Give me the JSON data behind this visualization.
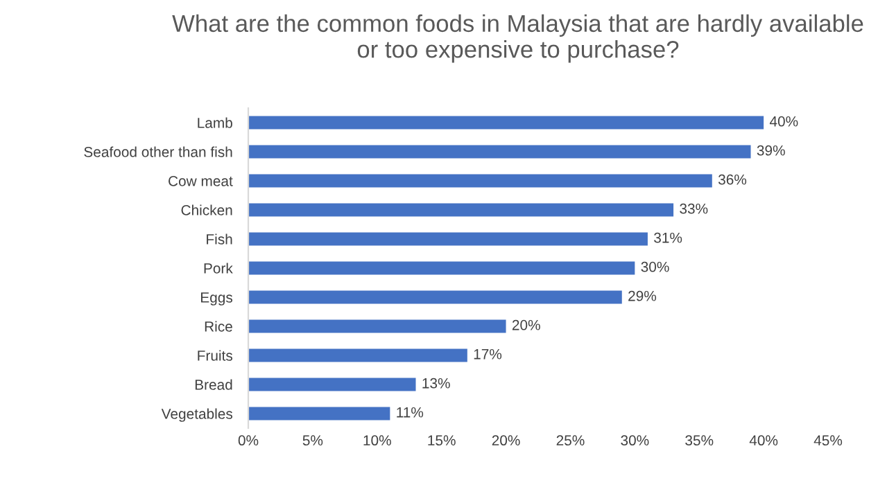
{
  "chart_data": {
    "type": "bar",
    "orientation": "horizontal",
    "title": "What are the common foods in Malaysia that are hardly available or too expensive to purchase?",
    "categories": [
      "Lamb",
      "Seafood other than fish",
      "Cow meat",
      "Chicken",
      "Fish",
      "Pork",
      "Eggs",
      "Rice",
      "Fruits",
      "Bread",
      "Vegetables"
    ],
    "values": [
      40,
      39,
      36,
      33,
      31,
      30,
      29,
      20,
      17,
      13,
      11
    ],
    "value_labels": [
      "40%",
      "39%",
      "36%",
      "33%",
      "31%",
      "30%",
      "29%",
      "20%",
      "17%",
      "13%",
      "11%"
    ],
    "color": "#4472c4",
    "xlim": [
      0,
      45
    ],
    "xticks": [
      {
        "value": 0,
        "label": "0%"
      },
      {
        "value": 5,
        "label": "5%"
      },
      {
        "value": 10,
        "label": "10%"
      },
      {
        "value": 15,
        "label": "15%"
      },
      {
        "value": 20,
        "label": "20%"
      },
      {
        "value": 25,
        "label": "25%"
      },
      {
        "value": 30,
        "label": "30%"
      },
      {
        "value": 35,
        "label": "35%"
      },
      {
        "value": 40,
        "label": "40%"
      },
      {
        "value": 45,
        "label": "45%"
      }
    ],
    "grid": false,
    "legend": false
  }
}
